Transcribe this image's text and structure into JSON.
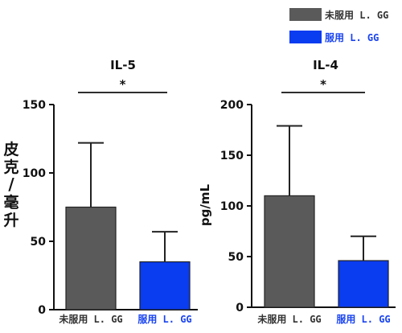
{
  "legend": {
    "items": [
      {
        "label": "未服用 L. GG",
        "color": "#5a5a5a"
      },
      {
        "label": "服用 L. GG",
        "color": "#0a3cf0"
      }
    ]
  },
  "chart_data": [
    {
      "type": "bar",
      "title": "IL-5",
      "ylabel": "皮克/毫升",
      "ylim": [
        0,
        150
      ],
      "yticks": [
        "0",
        "50",
        "100",
        "150"
      ],
      "categories": [
        "未服用 L. GG",
        "服用 L. GG"
      ],
      "values": [
        75,
        35
      ],
      "errors": [
        47,
        22
      ],
      "colors": [
        "#5a5a5a",
        "#0a3cf0"
      ],
      "significance": "*"
    },
    {
      "type": "bar",
      "title": "IL-4",
      "ylabel": "pg/mL",
      "ylim": [
        0,
        200
      ],
      "yticks": [
        "0",
        "50",
        "100",
        "150",
        "200"
      ],
      "categories": [
        "未服用 L. GG",
        "服用 L. GG"
      ],
      "values": [
        110,
        46
      ],
      "errors": [
        69,
        24
      ],
      "colors": [
        "#5a5a5a",
        "#0a3cf0"
      ],
      "significance": "*"
    }
  ]
}
